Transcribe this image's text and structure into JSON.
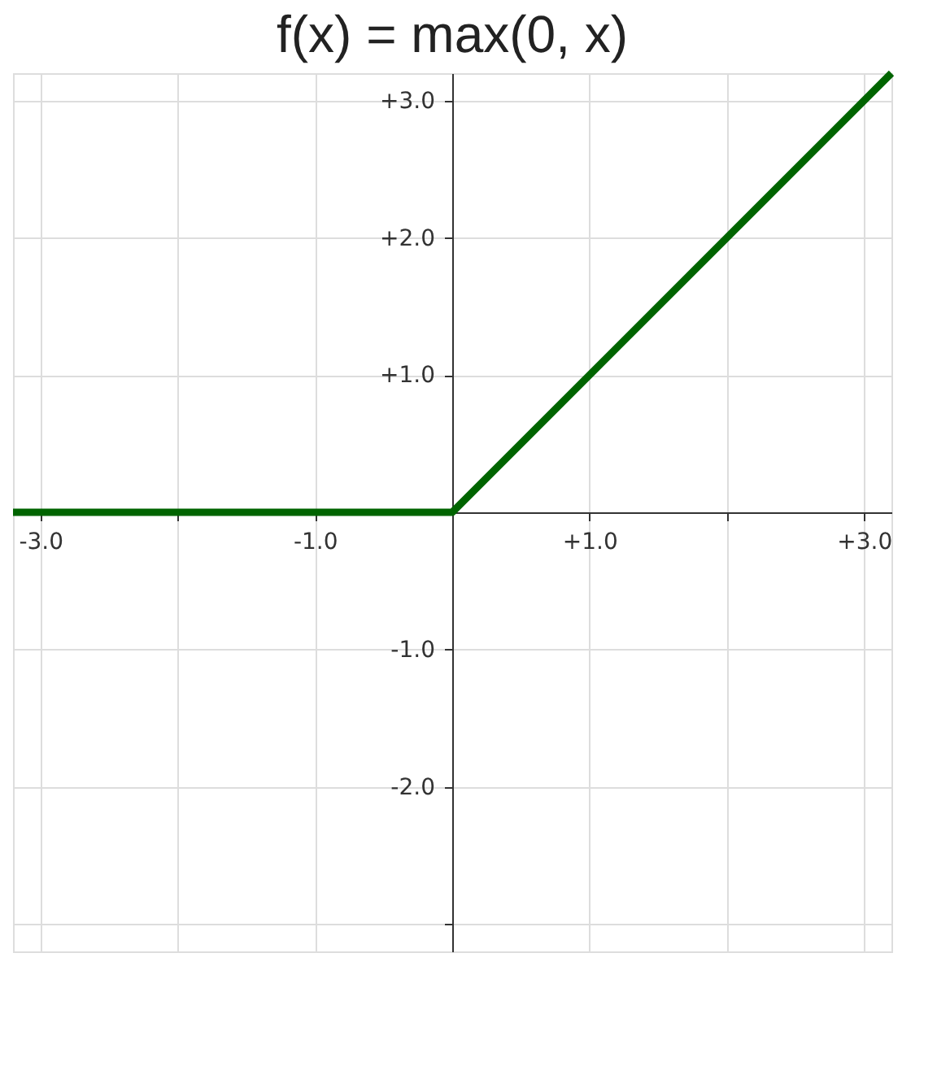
{
  "chart_data": {
    "type": "line",
    "title": "f(x) = max(0, x)",
    "x": [
      -3.2,
      0,
      3.2
    ],
    "series": [
      {
        "color": "#006400",
        "values": [
          0,
          0,
          3.2
        ]
      }
    ],
    "xlim": [
      -3.2,
      3.2
    ],
    "ylim": [
      -3.2,
      3.2
    ],
    "xticks": [
      {
        "value": -3,
        "label": "-3.0"
      },
      {
        "value": -2,
        "label": null
      },
      {
        "value": -1,
        "label": "-1.0"
      },
      {
        "value": 1,
        "label": "+1.0"
      },
      {
        "value": 2,
        "label": null
      },
      {
        "value": 3,
        "label": "+3.0"
      }
    ],
    "yticks": [
      {
        "value": -3,
        "label": null
      },
      {
        "value": -2,
        "label": "-2.0"
      },
      {
        "value": -1,
        "label": "-1.0"
      },
      {
        "value": 1,
        "label": "+1.0"
      },
      {
        "value": 2,
        "label": "+2.0"
      },
      {
        "value": 3,
        "label": "+3.0"
      }
    ],
    "grid": true,
    "marker": "none",
    "line_style": "solid"
  }
}
